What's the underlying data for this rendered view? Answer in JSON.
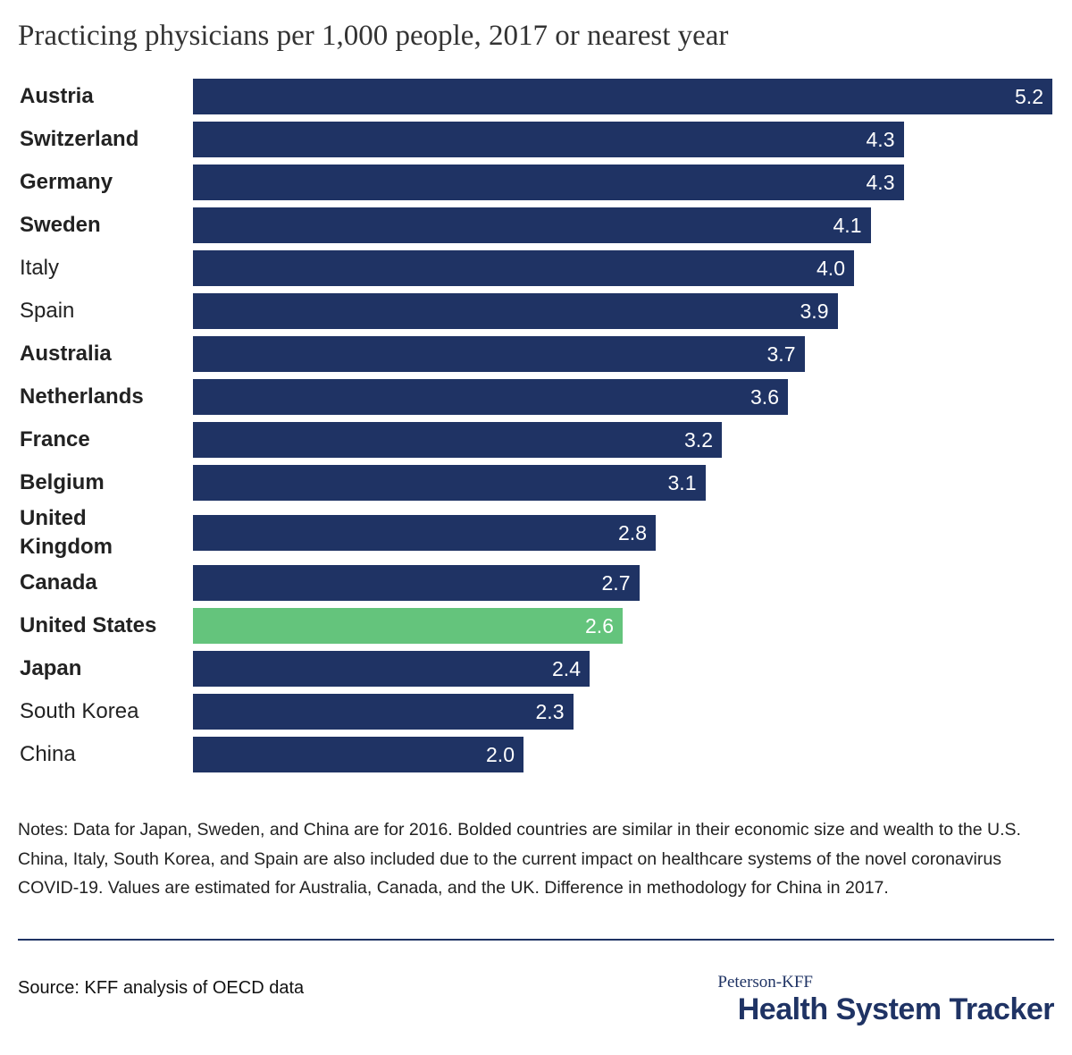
{
  "chart_data": {
    "type": "bar",
    "orientation": "horizontal",
    "title": "Practicing physicians per 1,000 people, 2017 or nearest year",
    "categories": [
      "Austria",
      "Switzerland",
      "Germany",
      "Sweden",
      "Italy",
      "Spain",
      "Australia",
      "Netherlands",
      "France",
      "Belgium",
      "United Kingdom",
      "Canada",
      "United States",
      "Japan",
      "South Korea",
      "China"
    ],
    "values": [
      5.2,
      4.3,
      4.3,
      4.1,
      4.0,
      3.9,
      3.7,
      3.6,
      3.2,
      3.1,
      2.8,
      2.7,
      2.6,
      2.4,
      2.3,
      2.0
    ],
    "value_labels": [
      "5.2",
      "4.3",
      "4.3",
      "4.1",
      "4.0",
      "3.9",
      "3.7",
      "3.6",
      "3.2",
      "3.1",
      "2.8",
      "2.7",
      "2.6",
      "2.4",
      "2.3",
      "2.0"
    ],
    "colors": [
      "#1f3364",
      "#1f3364",
      "#1f3364",
      "#1f3364",
      "#1f3364",
      "#1f3364",
      "#1f3364",
      "#1f3364",
      "#1f3364",
      "#1f3364",
      "#1f3364",
      "#1f3364",
      "#64c47c",
      "#1f3364",
      "#1f3364",
      "#1f3364"
    ],
    "bold": [
      true,
      true,
      true,
      true,
      false,
      false,
      true,
      true,
      true,
      true,
      true,
      true,
      true,
      true,
      false,
      false
    ],
    "notes": "Notes: Data for Japan, Sweden, and China are for 2016.  Bolded countries are similar in their economic size and wealth to the U.S. China, Italy, South Korea, and Spain are also included due to the current impact on healthcare systems of the novel coronavirus COVID-19. Values are estimated for Australia, Canada, and the UK. Difference in methodology for China in 2017.",
    "source": "Source: KFF analysis of OECD data",
    "logo": {
      "top": "Peterson-KFF",
      "bottom": "Health System Tracker"
    }
  }
}
